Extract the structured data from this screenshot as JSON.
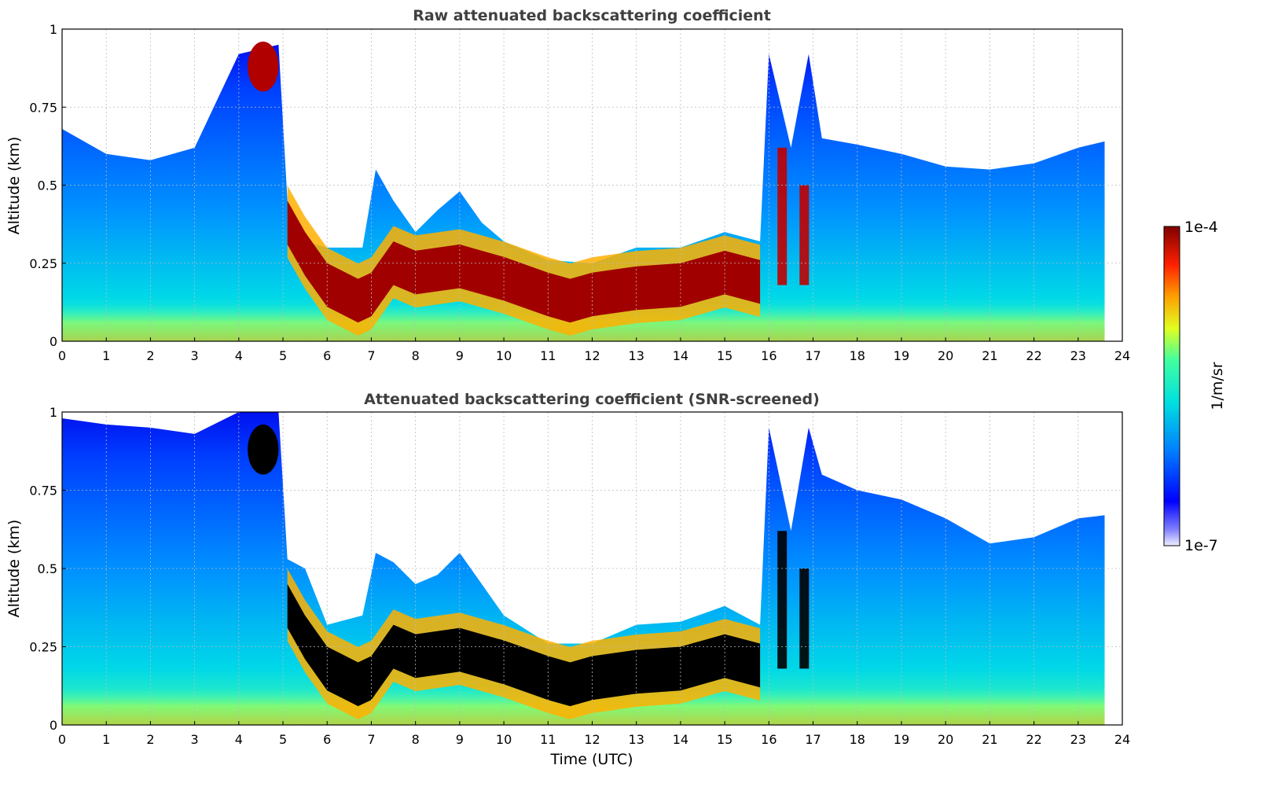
{
  "chart_data": [
    {
      "type": "heatmap",
      "title": "Raw attenuated backscattering coefficient",
      "xlabel": "",
      "ylabel": "Altitude (km)",
      "xlim": [
        0,
        24
      ],
      "ylim": [
        0,
        1
      ],
      "x_ticks": [
        "0",
        "1",
        "2",
        "3",
        "4",
        "5",
        "6",
        "7",
        "8",
        "9",
        "10",
        "11",
        "12",
        "13",
        "14",
        "15",
        "16",
        "17",
        "18",
        "19",
        "20",
        "21",
        "22",
        "23",
        "24"
      ],
      "y_ticks": [
        "0",
        "0.25",
        "0.5",
        "0.75",
        "1"
      ],
      "grid": true,
      "data_end_time": 23.6,
      "cloud_layer_top_km": [
        [
          0,
          0.68
        ],
        [
          1,
          0.6
        ],
        [
          2,
          0.58
        ],
        [
          3,
          0.62
        ],
        [
          4,
          0.92
        ],
        [
          4.9,
          0.95
        ],
        [
          5.1,
          0.45
        ],
        [
          5.5,
          0.32
        ],
        [
          6,
          0.3
        ],
        [
          6.8,
          0.3
        ],
        [
          7.1,
          0.55
        ],
        [
          7.5,
          0.45
        ],
        [
          8,
          0.35
        ],
        [
          8.5,
          0.42
        ],
        [
          9,
          0.48
        ],
        [
          9.5,
          0.38
        ],
        [
          10,
          0.32
        ],
        [
          11,
          0.26
        ],
        [
          12,
          0.25
        ],
        [
          13,
          0.3
        ],
        [
          14,
          0.3
        ],
        [
          15,
          0.35
        ],
        [
          15.8,
          0.32
        ],
        [
          16,
          0.92
        ],
        [
          16.5,
          0.62
        ],
        [
          16.9,
          0.92
        ],
        [
          17.2,
          0.65
        ],
        [
          18,
          0.63
        ],
        [
          19,
          0.6
        ],
        [
          20,
          0.56
        ],
        [
          21,
          0.55
        ],
        [
          22,
          0.57
        ],
        [
          23,
          0.62
        ],
        [
          23.6,
          0.64
        ]
      ],
      "cloud_layer_center_km": [
        [
          5.1,
          0.38
        ],
        [
          5.5,
          0.28
        ],
        [
          6,
          0.18
        ],
        [
          6.7,
          0.13
        ],
        [
          7,
          0.15
        ],
        [
          7.5,
          0.25
        ],
        [
          8,
          0.22
        ],
        [
          9,
          0.24
        ],
        [
          9.5,
          0.22
        ],
        [
          10,
          0.2
        ],
        [
          11,
          0.15
        ],
        [
          11.5,
          0.13
        ],
        [
          12,
          0.15
        ],
        [
          13,
          0.17
        ],
        [
          14,
          0.18
        ],
        [
          15,
          0.22
        ],
        [
          15.8,
          0.19
        ]
      ]
    },
    {
      "type": "heatmap",
      "title": "Attenuated backscattering coefficient (SNR-screened)",
      "xlabel": "Time (UTC)",
      "ylabel": "Altitude (km)",
      "xlim": [
        0,
        24
      ],
      "ylim": [
        0,
        1
      ],
      "x_ticks": [
        "0",
        "1",
        "2",
        "3",
        "4",
        "5",
        "6",
        "7",
        "8",
        "9",
        "10",
        "11",
        "12",
        "13",
        "14",
        "15",
        "16",
        "17",
        "18",
        "19",
        "20",
        "21",
        "22",
        "23",
        "24"
      ],
      "y_ticks": [
        "0",
        "0.25",
        "0.5",
        "0.75",
        "1"
      ],
      "grid": true,
      "data_end_time": 23.6,
      "cloud_layer_top_km": [
        [
          0,
          0.98
        ],
        [
          1,
          0.96
        ],
        [
          2,
          0.95
        ],
        [
          3,
          0.93
        ],
        [
          4,
          1.0
        ],
        [
          4.9,
          1.0
        ],
        [
          5.1,
          0.53
        ],
        [
          5.5,
          0.5
        ],
        [
          6,
          0.32
        ],
        [
          6.8,
          0.35
        ],
        [
          7.1,
          0.55
        ],
        [
          7.5,
          0.52
        ],
        [
          8,
          0.45
        ],
        [
          8.5,
          0.48
        ],
        [
          9,
          0.55
        ],
        [
          9.5,
          0.45
        ],
        [
          10,
          0.35
        ],
        [
          11,
          0.26
        ],
        [
          12,
          0.26
        ],
        [
          13,
          0.32
        ],
        [
          14,
          0.33
        ],
        [
          15,
          0.38
        ],
        [
          15.8,
          0.32
        ],
        [
          16,
          0.95
        ],
        [
          16.5,
          0.62
        ],
        [
          16.9,
          0.95
        ],
        [
          17.2,
          0.8
        ],
        [
          18,
          0.75
        ],
        [
          19,
          0.72
        ],
        [
          20,
          0.66
        ],
        [
          21,
          0.58
        ],
        [
          22,
          0.6
        ],
        [
          23,
          0.66
        ],
        [
          23.6,
          0.67
        ]
      ],
      "cloud_layer_center_km": [
        [
          5.1,
          0.38
        ],
        [
          5.5,
          0.28
        ],
        [
          6,
          0.18
        ],
        [
          6.7,
          0.13
        ],
        [
          7,
          0.15
        ],
        [
          7.5,
          0.25
        ],
        [
          8,
          0.22
        ],
        [
          9,
          0.24
        ],
        [
          9.5,
          0.22
        ],
        [
          10,
          0.2
        ],
        [
          11,
          0.15
        ],
        [
          11.5,
          0.13
        ],
        [
          12,
          0.15
        ],
        [
          13,
          0.17
        ],
        [
          14,
          0.18
        ],
        [
          15,
          0.22
        ],
        [
          15.8,
          0.19
        ]
      ]
    }
  ],
  "colorbar": {
    "label": "1/m/sr",
    "max_label": "1e-4",
    "min_label": "1e-7",
    "scale": "log",
    "colormap": [
      "#f0f0ff",
      "#0000ff",
      "#0080ff",
      "#00e0e0",
      "#40ffa0",
      "#e0ff20",
      "#ffa000",
      "#ff2000",
      "#800000"
    ]
  }
}
